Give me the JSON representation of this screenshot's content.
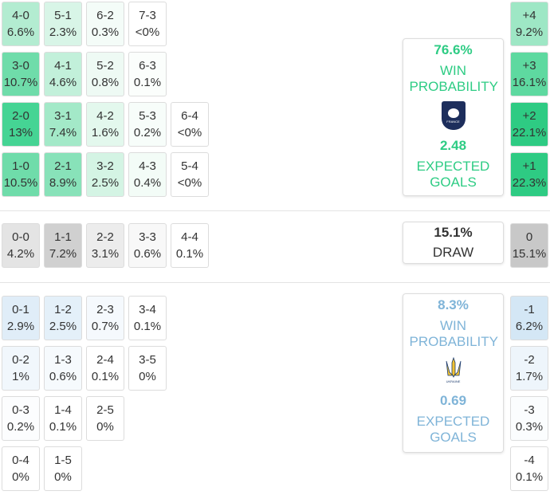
{
  "france": {
    "rows": [
      [
        {
          "score": "4-0",
          "prob": "6.6%",
          "color": "#b3ecd1"
        },
        {
          "score": "5-1",
          "prob": "2.3%",
          "color": "#d8f5e7"
        },
        {
          "score": "6-2",
          "prob": "0.3%",
          "color": "#f4fcf8"
        },
        {
          "score": "7-3",
          "prob": "<0%",
          "color": "#ffffff"
        }
      ],
      [
        {
          "score": "3-0",
          "prob": "10.7%",
          "color": "#6fdcaa"
        },
        {
          "score": "4-1",
          "prob": "4.6%",
          "color": "#c2f0da"
        },
        {
          "score": "5-2",
          "prob": "0.8%",
          "color": "#eefaf4"
        },
        {
          "score": "6-3",
          "prob": "0.1%",
          "color": "#fbfefc"
        }
      ],
      [
        {
          "score": "2-0",
          "prob": "13%",
          "color": "#45d494"
        },
        {
          "score": "3-1",
          "prob": "7.4%",
          "color": "#a3e9c8"
        },
        {
          "score": "4-2",
          "prob": "1.6%",
          "color": "#e3f8ed"
        },
        {
          "score": "5-3",
          "prob": "0.2%",
          "color": "#f7fdfa"
        },
        {
          "score": "6-4",
          "prob": "<0%",
          "color": "#ffffff"
        }
      ],
      [
        {
          "score": "1-0",
          "prob": "10.5%",
          "color": "#6fdcaa"
        },
        {
          "score": "2-1",
          "prob": "8.9%",
          "color": "#88e2b9"
        },
        {
          "score": "3-2",
          "prob": "2.5%",
          "color": "#d4f4e4"
        },
        {
          "score": "4-3",
          "prob": "0.4%",
          "color": "#f3fcf7"
        },
        {
          "score": "5-4",
          "prob": "<0%",
          "color": "#ffffff"
        }
      ]
    ],
    "margins": [
      {
        "label": "+4",
        "prob": "9.2%",
        "color": "#9ee7c5"
      },
      {
        "label": "+3",
        "prob": "16.1%",
        "color": "#5ed9a0"
      },
      {
        "label": "+2",
        "prob": "22.1%",
        "color": "#2ecb83"
      },
      {
        "label": "+1",
        "prob": "22.3%",
        "color": "#2ecb83"
      }
    ],
    "summary": {
      "win_pct": "76.6%",
      "win_label": "WIN PROBABILITY",
      "crest": "FRANCE",
      "xg": "2.48",
      "xg_label": "EXPECTED GOALS"
    }
  },
  "draw": {
    "rows": [
      [
        {
          "score": "0-0",
          "prob": "4.2%",
          "color": "#e4e4e4"
        },
        {
          "score": "1-1",
          "prob": "7.2%",
          "color": "#d0d0d0"
        },
        {
          "score": "2-2",
          "prob": "3.1%",
          "color": "#ececec"
        },
        {
          "score": "3-3",
          "prob": "0.6%",
          "color": "#f8f8f8"
        },
        {
          "score": "4-4",
          "prob": "0.1%",
          "color": "#ffffff"
        }
      ]
    ],
    "margins": [
      {
        "label": "0",
        "prob": "15.1%",
        "color": "#c8c8c8"
      }
    ],
    "summary": {
      "pct": "15.1%",
      "label": "DRAW"
    }
  },
  "ukraine": {
    "rows": [
      [
        {
          "score": "0-1",
          "prob": "2.9%",
          "color": "#e0edf8"
        },
        {
          "score": "1-2",
          "prob": "2.5%",
          "color": "#e4f0f9"
        },
        {
          "score": "2-3",
          "prob": "0.7%",
          "color": "#f5f9fd"
        },
        {
          "score": "3-4",
          "prob": "0.1%",
          "color": "#ffffff"
        }
      ],
      [
        {
          "score": "0-2",
          "prob": "1%",
          "color": "#f1f7fc"
        },
        {
          "score": "1-3",
          "prob": "0.6%",
          "color": "#f6fafd"
        },
        {
          "score": "2-4",
          "prob": "0.1%",
          "color": "#ffffff"
        },
        {
          "score": "3-5",
          "prob": "0%",
          "color": "#ffffff"
        }
      ],
      [
        {
          "score": "0-3",
          "prob": "0.2%",
          "color": "#fcfdfe"
        },
        {
          "score": "1-4",
          "prob": "0.1%",
          "color": "#ffffff"
        },
        {
          "score": "2-5",
          "prob": "0%",
          "color": "#ffffff"
        }
      ],
      [
        {
          "score": "0-4",
          "prob": "0%",
          "color": "#ffffff"
        },
        {
          "score": "1-5",
          "prob": "0%",
          "color": "#ffffff"
        }
      ]
    ],
    "margins": [
      {
        "label": "-1",
        "prob": "6.2%",
        "color": "#d4e7f5"
      },
      {
        "label": "-2",
        "prob": "1.7%",
        "color": "#eef5fb"
      },
      {
        "label": "-3",
        "prob": "0.3%",
        "color": "#fbfdfe"
      },
      {
        "label": "-4",
        "prob": "0.1%",
        "color": "#ffffff"
      }
    ],
    "summary": {
      "win_pct": "8.3%",
      "win_label": "WIN PROBABILITY",
      "crest": "UKRAINE",
      "xg": "0.69",
      "xg_label": "EXPECTED GOALS"
    }
  }
}
